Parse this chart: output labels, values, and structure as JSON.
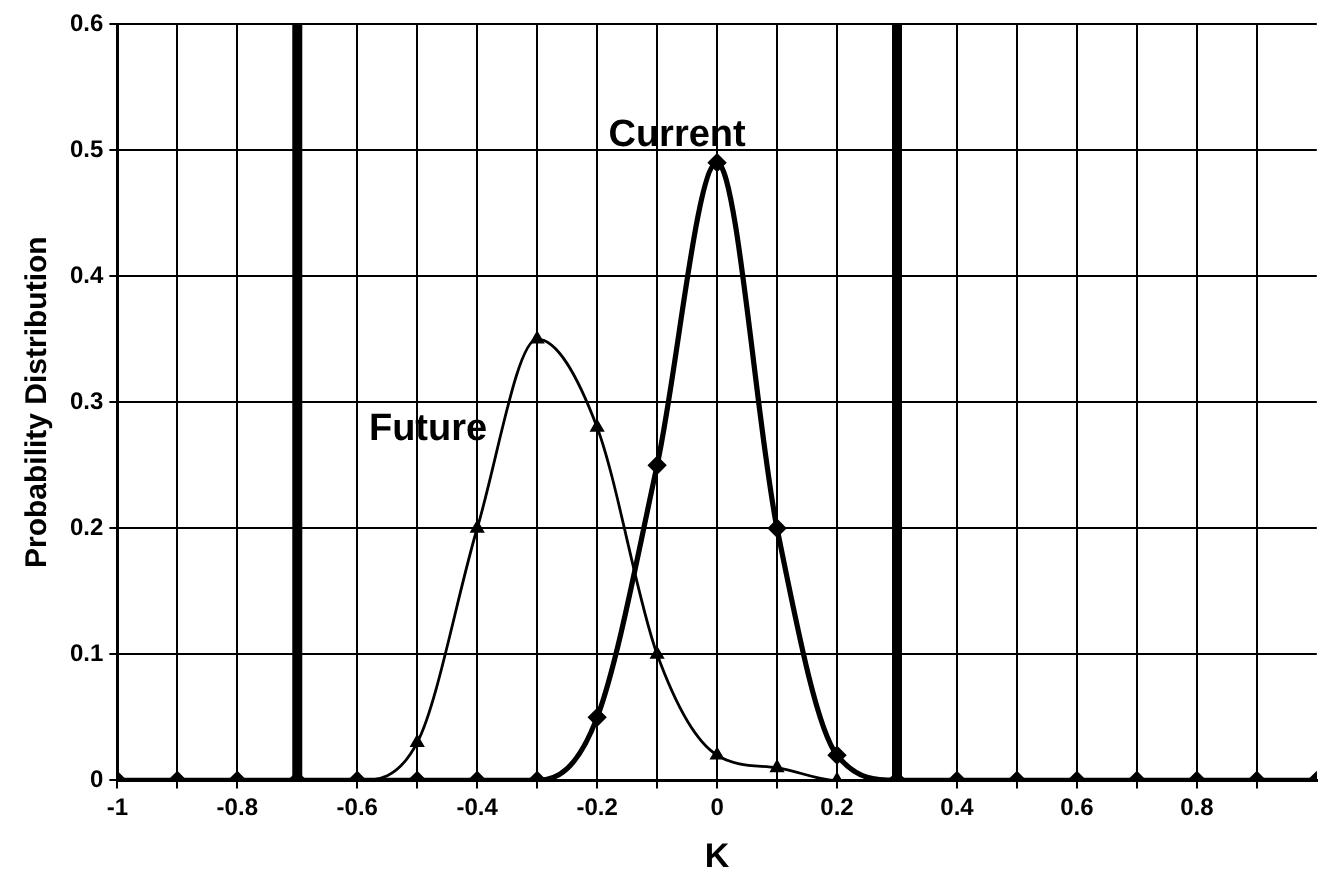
{
  "chart_data": {
    "type": "line",
    "xlabel": "K",
    "ylabel": "Probability Distribution",
    "x": [
      -1,
      -0.9,
      -0.8,
      -0.7,
      -0.6,
      -0.5,
      -0.4,
      -0.3,
      -0.2,
      -0.1,
      0,
      0.1,
      0.2,
      0.3,
      0.4,
      0.5,
      0.6,
      0.7,
      0.8,
      0.9,
      1
    ],
    "series": [
      {
        "name": "Current",
        "color": "#000000",
        "marker": "diamond",
        "values": [
          0,
          0,
          0,
          0,
          0,
          0,
          0,
          0,
          0.05,
          0.25,
          0.49,
          0.2,
          0.02,
          0,
          0,
          0,
          0,
          0,
          0,
          0,
          0
        ]
      },
      {
        "name": "Future",
        "color": "#000000",
        "marker": "triangle",
        "values": [
          0,
          0,
          0,
          0,
          0,
          0.03,
          0.2,
          0.35,
          0.28,
          0.1,
          0.02,
          0.01,
          0,
          0,
          0,
          0,
          0,
          0,
          0,
          0,
          0
        ]
      }
    ],
    "xlim": [
      -1,
      1
    ],
    "xticks": [
      -1,
      {
        "value": -0.9,
        "label": null
      },
      -0.8,
      -0.6,
      {
        "value": -0.5,
        "label": null
      },
      -0.4,
      {
        "value": -0.3,
        "label": null
      },
      -0.2,
      {
        "value": -0.1,
        "label": null
      },
      0,
      {
        "value": 0.1,
        "label": null
      },
      0.2,
      0.4,
      {
        "value": 0.5,
        "label": null
      },
      0.6,
      {
        "value": 0.7,
        "label": null
      },
      0.8,
      {
        "value": 0.9,
        "label": null
      }
    ],
    "ylim": [
      0,
      0.6
    ],
    "yticks": [
      0,
      0.1,
      0.2,
      0.3,
      0.4,
      0.5,
      0.6
    ],
    "ref_lines": [
      {
        "axis": "x",
        "value": -0.7,
        "color": "#000000"
      },
      {
        "axis": "x",
        "value": 0.3,
        "color": "#000000"
      }
    ],
    "grid": true,
    "legend": false,
    "line_style": "solid"
  }
}
